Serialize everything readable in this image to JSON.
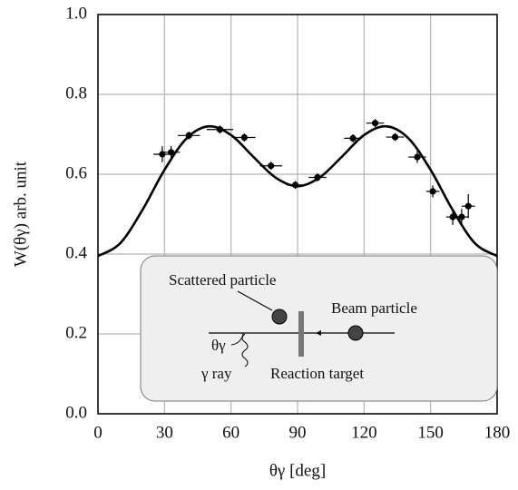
{
  "chart_data": {
    "type": "scatter",
    "xlabel": "θγ [deg]",
    "ylabel": "W(θγ) arb. unit",
    "xlim": [
      0,
      180
    ],
    "ylim": [
      0,
      1
    ],
    "xticks": [
      0,
      30,
      60,
      90,
      120,
      150,
      180
    ],
    "yticks": [
      {
        "value": 0,
        "label": "0.0"
      },
      0.2,
      0.4,
      0.6,
      0.8,
      {
        "value": 1,
        "label": "1.0"
      }
    ],
    "grid": true,
    "series": [
      {
        "type": "scatter",
        "color": "#000000",
        "x": [
          29,
          33,
          41,
          55,
          66,
          78,
          89,
          99,
          115,
          125,
          134,
          144,
          151,
          160,
          164,
          167
        ],
        "values": [
          0.65,
          0.655,
          0.697,
          0.712,
          0.692,
          0.621,
          0.573,
          0.592,
          0.69,
          0.728,
          0.693,
          0.643,
          0.557,
          0.493,
          0.493,
          0.52
        ],
        "xerr": [
          4,
          4,
          5,
          6,
          5,
          5,
          4,
          4,
          4,
          4,
          4,
          4,
          3,
          3,
          3,
          3
        ],
        "yerr": [
          0.02,
          0.016,
          0.01,
          0.01,
          0.01,
          0.01,
          0.01,
          0.01,
          0.01,
          0.01,
          0.01,
          0.015,
          0.015,
          0.02,
          0.02,
          0.03
        ]
      },
      {
        "type": "line",
        "color": "#000000",
        "x": [
          0,
          10,
          20,
          30,
          40,
          50,
          60,
          70,
          80,
          90,
          100,
          110,
          120,
          130,
          140,
          150,
          160,
          170,
          180
        ],
        "values": [
          0.395,
          0.427,
          0.51,
          0.611,
          0.69,
          0.72,
          0.698,
          0.644,
          0.592,
          0.57,
          0.592,
          0.644,
          0.698,
          0.72,
          0.69,
          0.611,
          0.51,
          0.427,
          0.395
        ]
      }
    ],
    "annotations": [
      "Scattered particle",
      "Beam particle",
      "θγ",
      "γ ray",
      "Reaction target"
    ]
  }
}
